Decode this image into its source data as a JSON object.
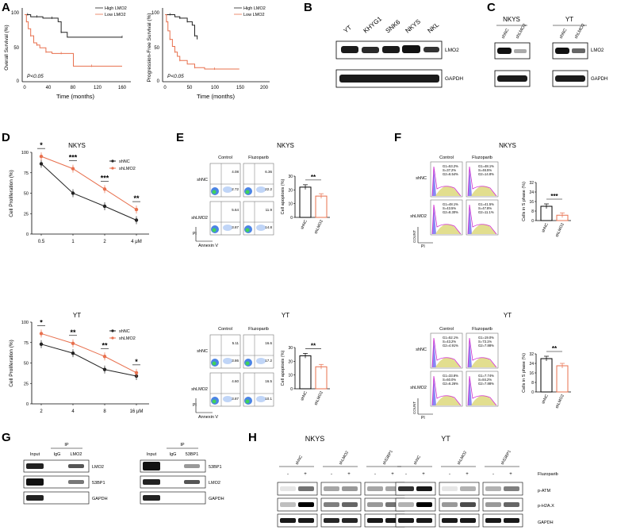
{
  "panels": {
    "A": {
      "letter": "A",
      "os": {
        "type": "line",
        "ylabel": "Overall Survival (%)",
        "xlabel": "Time (months)",
        "xticks": [
          "0",
          "40",
          "80",
          "120",
          "160"
        ],
        "yticks": [
          "0",
          "50",
          "100"
        ],
        "legend": [
          "High LMO2",
          "Low LMO2"
        ],
        "pvalue": "P<0.05",
        "series": [
          {
            "name": "High LMO2",
            "color": "#222222",
            "x": [
              0,
              5,
              10,
              20,
              30,
              45,
              55,
              60,
              70,
              160
            ],
            "y": [
              95,
              95,
              92,
              92,
              90,
              90,
              85,
              70,
              63,
              63
            ]
          },
          {
            "name": "Low LMO2",
            "color": "#e8704e",
            "x": [
              0,
              3,
              6,
              10,
              15,
              20,
              25,
              35,
              45,
              60,
              80,
              110,
              160
            ],
            "y": [
              95,
              85,
              75,
              65,
              55,
              52,
              48,
              42,
              40,
              40,
              22,
              22,
              22
            ]
          }
        ]
      },
      "pfs": {
        "type": "line",
        "ylabel": "Progression-Free Survival (%)",
        "xlabel": "Time (months)",
        "xticks": [
          "0",
          "50",
          "100",
          "150",
          "200"
        ],
        "yticks": [
          "0",
          "50",
          "100"
        ],
        "legend": [
          "High LMO2",
          "Low LMO2"
        ],
        "pvalue": "P<0.05",
        "series": [
          {
            "name": "High LMO2",
            "color": "#222222",
            "x": [
              0,
              10,
              20,
              30,
              40,
              45,
              55,
              60,
              65
            ],
            "y": [
              95,
              95,
              92,
              90,
              90,
              85,
              80,
              65,
              60
            ]
          },
          {
            "name": "Low LMO2",
            "color": "#e8704e",
            "x": [
              0,
              3,
              6,
              10,
              15,
              20,
              25,
              30,
              45,
              60,
              80,
              100,
              150
            ],
            "y": [
              95,
              85,
              72,
              60,
              50,
              42,
              36,
              30,
              25,
              20,
              18,
              18,
              18
            ]
          }
        ]
      }
    },
    "B": {
      "letter": "B",
      "lanes": [
        "YT",
        "KHYG1",
        "SNK6",
        "NKYS",
        "NKL"
      ],
      "bands": [
        "LMO2",
        "GAPDH"
      ]
    },
    "C": {
      "letter": "C",
      "groups": [
        {
          "title": "NKYS",
          "lanes": [
            "shNC",
            "shLMO2"
          ]
        },
        {
          "title": "YT",
          "lanes": [
            "shNC",
            "shLMO2"
          ]
        }
      ],
      "bands": [
        "LMO2",
        "GAPDH"
      ]
    },
    "D": {
      "letter": "D",
      "charts": [
        {
          "title": "NKYS",
          "ylabel": "Cell Proliferation (%)",
          "xticks": [
            "0.5",
            "1",
            "2",
            "4 μM"
          ],
          "yticks": [
            "0",
            "25",
            "50",
            "75",
            "100"
          ],
          "sig": [
            "*",
            "***",
            "***",
            "**"
          ],
          "legend": [
            "shNC",
            "shLMO2"
          ],
          "series": [
            {
              "name": "shNC",
              "color": "#222222",
              "values": [
                86,
                50,
                34,
                17
              ]
            },
            {
              "name": "shLMO2",
              "color": "#e8704e",
              "values": [
                95,
                80,
                55,
                30
              ]
            }
          ]
        },
        {
          "title": "YT",
          "ylabel": "Cell Proliferation (%)",
          "xticks": [
            "2",
            "4",
            "8",
            "16 μM"
          ],
          "yticks": [
            "0",
            "25",
            "50",
            "75",
            "100"
          ],
          "sig": [
            "*",
            "**",
            "**",
            "*"
          ],
          "legend": [
            "shNC",
            "shLMO2"
          ],
          "series": [
            {
              "name": "shNC",
              "color": "#222222",
              "values": [
                73,
                62,
                42,
                34
              ]
            },
            {
              "name": "shLMO2",
              "color": "#e8704e",
              "values": [
                86,
                74,
                58,
                38
              ]
            }
          ]
        }
      ]
    },
    "E": {
      "letter": "E",
      "blocks": [
        {
          "title": "NKYS",
          "cols": [
            "Control",
            "Fluzoparib"
          ],
          "rows": [
            "shNC",
            "shLMO2"
          ],
          "quadrants": [
            [
              "4.08",
              "2.72",
              "6.36",
              "22.2"
            ],
            [
              "5.64",
              "3.87",
              "11.9",
              "14.8"
            ]
          ],
          "xlabel": "Annexin V",
          "ylabel": "PI",
          "bar": {
            "ylabel": "Cell apoptosis (%)",
            "yticks": [
              "0",
              "10",
              "20",
              "30"
            ],
            "categories": [
              "shNC",
              "shLMO2"
            ],
            "values": [
              22,
              15.5
            ],
            "sig": "**"
          }
        },
        {
          "title": "YT",
          "cols": [
            "Control",
            "Fluzoparib"
          ],
          "rows": [
            "shNC",
            "shLMO2"
          ],
          "quadrants": [
            [
              "5.11",
              "3.86",
              "16.6",
              "17.2"
            ],
            [
              "4.60",
              "3.87",
              "16.5",
              "10.1"
            ]
          ],
          "xlabel": "Annexin V",
          "ylabel": "PI",
          "bar": {
            "ylabel": "Cell apoptosis (%)",
            "yticks": [
              "0",
              "10",
              "20",
              "30"
            ],
            "categories": [
              "shNC",
              "shLMO2"
            ],
            "values": [
              24,
              16
            ],
            "sig": "**"
          }
        }
      ]
    },
    "F": {
      "letter": "F",
      "blocks": [
        {
          "title": "NKYS",
          "cols": [
            "Control",
            "Fluzoparib"
          ],
          "rows": [
            "shNC",
            "shLMO2"
          ],
          "stats": [
            [
              [
                "G1=53.2%",
                "S=37.2%",
                "G2=6.54%"
              ],
              [
                "G1=48.1%",
                "S=46.5%",
                "G2=14.8%"
              ]
            ],
            [
              [
                "G1=48.1%",
                "S=43.5%",
                "G2=8.30%"
              ],
              [
                "G1=41.5%",
                "S=47.8%",
                "G2=11.1%"
              ]
            ]
          ],
          "xlabel": "PI",
          "ylabel": "COUNT",
          "bar": {
            "ylabel": "Cells in S phase (%)",
            "yticks": [
              "0",
              "8",
              "16",
              "24",
              "32"
            ],
            "categories": [
              "shNC",
              "shLMO2"
            ],
            "values": [
              12,
              4.5
            ],
            "sig": "***"
          }
        },
        {
          "title": "YT",
          "cols": [
            "Control",
            "Fluzoparib"
          ],
          "rows": [
            "shNC",
            "shLMO2"
          ],
          "stats": [
            [
              [
                "G1=52.1%",
                "S=43.2%",
                "G2=4.91%"
              ],
              [
                "G1=19.0%",
                "S=73.1%",
                "G2=7.88%"
              ]
            ],
            [
              [
                "G1=33.8%",
                "S=60.0%",
                "G2=6.26%"
              ],
              [
                "G1=7.74%",
                "S=84.2%",
                "G2=7.88%"
              ]
            ]
          ],
          "xlabel": "PI",
          "ylabel": "COUNT",
          "bar": {
            "ylabel": "Cells in S phase (%)",
            "yticks": [
              "0",
              "8",
              "16",
              "24",
              "32"
            ],
            "categories": [
              "shNC",
              "shLMO2"
            ],
            "values": [
              28,
              22
            ],
            "sig": "**"
          }
        }
      ]
    },
    "G": {
      "letter": "G",
      "blots": [
        {
          "lanes": [
            "Input",
            "IgG",
            "LMO2"
          ],
          "ip_label": "IP",
          "bands": [
            "LMO2",
            "53BP1",
            "GAPDH"
          ]
        },
        {
          "lanes": [
            "Input",
            "IgG",
            "53BP1"
          ],
          "ip_label": "IP",
          "bands": [
            "53BP1",
            "LMO2",
            "GAPDH"
          ]
        }
      ]
    },
    "H": {
      "letter": "H",
      "blots": [
        {
          "title": "NKYS",
          "groups": [
            "shNC",
            "shLMO2",
            "sh53BP1"
          ]
        },
        {
          "title": "YT",
          "groups": [
            "shNC",
            "shLMO2",
            "sh53BP1"
          ]
        }
      ],
      "signs": [
        "-",
        "+",
        "-",
        "+",
        "-",
        "+"
      ],
      "treatment": "Fluzoparib",
      "bands": [
        "p-ATM",
        "p-H2A.X",
        "GAPDH"
      ]
    }
  }
}
